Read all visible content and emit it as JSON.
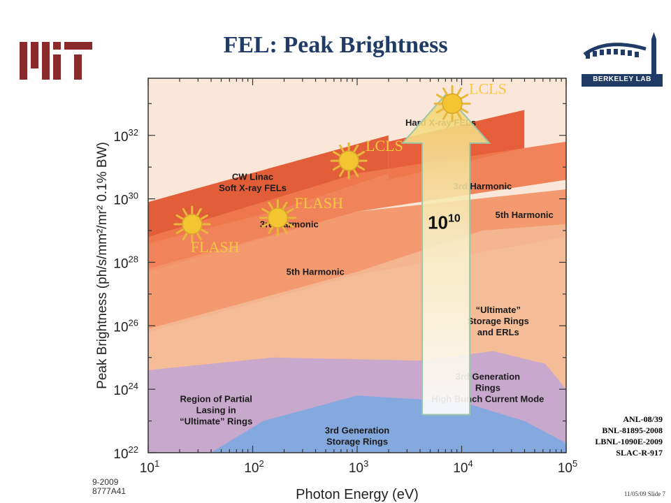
{
  "slide": {
    "title": "FEL: Peak Brightness",
    "logo_right_text": "BERKELEY LAB",
    "refs": [
      "ANL-08/39",
      "BNL-81895-2008",
      "LBNL-1090E-2009",
      "SLAC-R-917"
    ],
    "slide_number": "11/05/09 Slide 7"
  },
  "chart_data": {
    "type": "area",
    "xlabel": "Photon Energy  (eV)",
    "ylabel": "Peak Brightness  (ph/s/mm²/mr² 0.1% BW)",
    "x_scale": "log",
    "y_scale": "log",
    "x_ticks": [
      {
        "exp": 1,
        "label_base": "10",
        "label_exp": "1"
      },
      {
        "exp": 2,
        "label_base": "10",
        "label_exp": "2"
      },
      {
        "exp": 3,
        "label_base": "10",
        "label_exp": "3"
      },
      {
        "exp": 4,
        "label_base": "10",
        "label_exp": "4"
      },
      {
        "exp": 5,
        "label_base": "10",
        "label_exp": "5"
      }
    ],
    "y_ticks": [
      {
        "exp": 22,
        "label_base": "10",
        "label_exp": "22"
      },
      {
        "exp": 24,
        "label_base": "10",
        "label_exp": "24"
      },
      {
        "exp": 26,
        "label_base": "10",
        "label_exp": "26"
      },
      {
        "exp": 28,
        "label_base": "10",
        "label_exp": "28"
      },
      {
        "exp": 30,
        "label_base": "10",
        "label_exp": "30"
      },
      {
        "exp": 32,
        "label_base": "10",
        "label_exp": "32"
      }
    ],
    "xlim_log10": [
      1,
      5
    ],
    "ylim_log10": [
      22,
      33.8
    ],
    "figure_code": [
      "9-2009",
      "8777A41"
    ],
    "regions": [
      {
        "name": "CW Linac Soft X-ray FELs",
        "color": "#e0522b",
        "polygon_log10": [
          [
            1,
            29.0
          ],
          [
            1,
            29.9
          ],
          [
            2.2,
            31.0
          ],
          [
            3.3,
            32.0
          ],
          [
            3.3,
            30.8
          ],
          [
            2.2,
            29.6
          ],
          [
            1,
            28.6
          ]
        ]
      },
      {
        "name": "Hard X-ray FELs",
        "color": "#e5542c",
        "polygon_log10": [
          [
            3.3,
            31.8
          ],
          [
            4.6,
            32.8
          ],
          [
            4.6,
            31.6
          ],
          [
            3.3,
            30.6
          ]
        ]
      },
      {
        "name": "3rd Harmonic",
        "color": "#ef7b4e",
        "polygon_log10": [
          [
            1,
            27.7
          ],
          [
            1,
            28.8
          ],
          [
            3.0,
            30.8
          ],
          [
            5,
            31.8
          ],
          [
            5,
            30.6
          ],
          [
            3.0,
            29.6
          ]
        ]
      },
      {
        "name": "5th Harmonic",
        "color": "#f29467",
        "polygon_log10": [
          [
            1,
            25.8
          ],
          [
            1,
            27.8
          ],
          [
            3.0,
            29.6
          ],
          [
            5,
            30.3
          ],
          [
            5,
            28.8
          ],
          [
            3.0,
            27.6
          ]
        ]
      },
      {
        "name": "\"Ultimate\" Storage Rings and ERLs",
        "color": "#f4b893",
        "polygon_log10": [
          [
            1,
            22.6
          ],
          [
            1,
            25.9
          ],
          [
            3.0,
            27.7
          ],
          [
            4.2,
            29.0
          ],
          [
            5,
            29.2
          ],
          [
            5,
            22.0
          ],
          [
            1,
            22.0
          ]
        ]
      },
      {
        "name": "Region of Partial Lasing in \"Ultimate\" Rings",
        "color": "#c4a6d3",
        "polygon_log10": [
          [
            1,
            22.0
          ],
          [
            1,
            24.6
          ],
          [
            2.2,
            25.0
          ],
          [
            3.6,
            24.9
          ],
          [
            4.3,
            25.2
          ],
          [
            4.8,
            24.8
          ],
          [
            5,
            24.0
          ],
          [
            5,
            22.0
          ]
        ]
      },
      {
        "name": "3rd Generation Storage Rings",
        "color": "#7ea9e0",
        "polygon_log10": [
          [
            1.6,
            22.0
          ],
          [
            2.1,
            23.0
          ],
          [
            3.0,
            23.8
          ],
          [
            4.0,
            23.6
          ],
          [
            4.6,
            23.0
          ],
          [
            5,
            22.3
          ],
          [
            5,
            22.0
          ]
        ]
      }
    ],
    "region_labels": [
      {
        "lines": [
          "CW Linac",
          "Soft X-ray FELs"
        ],
        "x_log10": 2.0,
        "y_log10": 30.6
      },
      {
        "lines": [
          "Hard X-ray FELs"
        ],
        "x_log10": 3.8,
        "y_log10": 32.3
      },
      {
        "lines": [
          "3rd Harmonic"
        ],
        "x_log10": 2.35,
        "y_log10": 29.1
      },
      {
        "lines": [
          "3rd Harmonic"
        ],
        "x_log10": 4.2,
        "y_log10": 30.3
      },
      {
        "lines": [
          "5th Harmonic"
        ],
        "x_log10": 4.6,
        "y_log10": 29.4
      },
      {
        "lines": [
          "5th Harmonic"
        ],
        "x_log10": 2.6,
        "y_log10": 27.6
      },
      {
        "lines": [
          "“Ultimate”",
          "Storage Rings",
          "and ERLs"
        ],
        "x_log10": 4.35,
        "y_log10": 26.4
      },
      {
        "lines": [
          "3rd Generation",
          "Rings",
          "High Bunch Current Mode"
        ],
        "x_log10": 4.25,
        "y_log10": 24.3
      },
      {
        "lines": [
          "Region of Partial",
          "Lasing in",
          "“Ultimate” Rings"
        ],
        "x_log10": 1.65,
        "y_log10": 23.6
      },
      {
        "lines": [
          "3rd Generation",
          "Storage Rings"
        ],
        "x_log10": 3.0,
        "y_log10": 22.6
      }
    ],
    "sources": [
      {
        "label": "FLASH",
        "x_log10": 1.42,
        "y_log10": 29.2,
        "label_side": "below"
      },
      {
        "label": "FLASH",
        "x_log10": 2.24,
        "y_log10": 29.4,
        "label_side": "right"
      },
      {
        "label": "LCLS",
        "x_log10": 2.92,
        "y_log10": 31.2,
        "label_side": "right"
      },
      {
        "label": "LCLS",
        "x_log10": 3.91,
        "y_log10": 33.0,
        "label_side": "right"
      }
    ],
    "arrow": {
      "x_log10": 3.85,
      "from_y_log10": 23.2,
      "to_y_log10": 33.3,
      "label_base": "10",
      "label_exp": "10"
    }
  }
}
